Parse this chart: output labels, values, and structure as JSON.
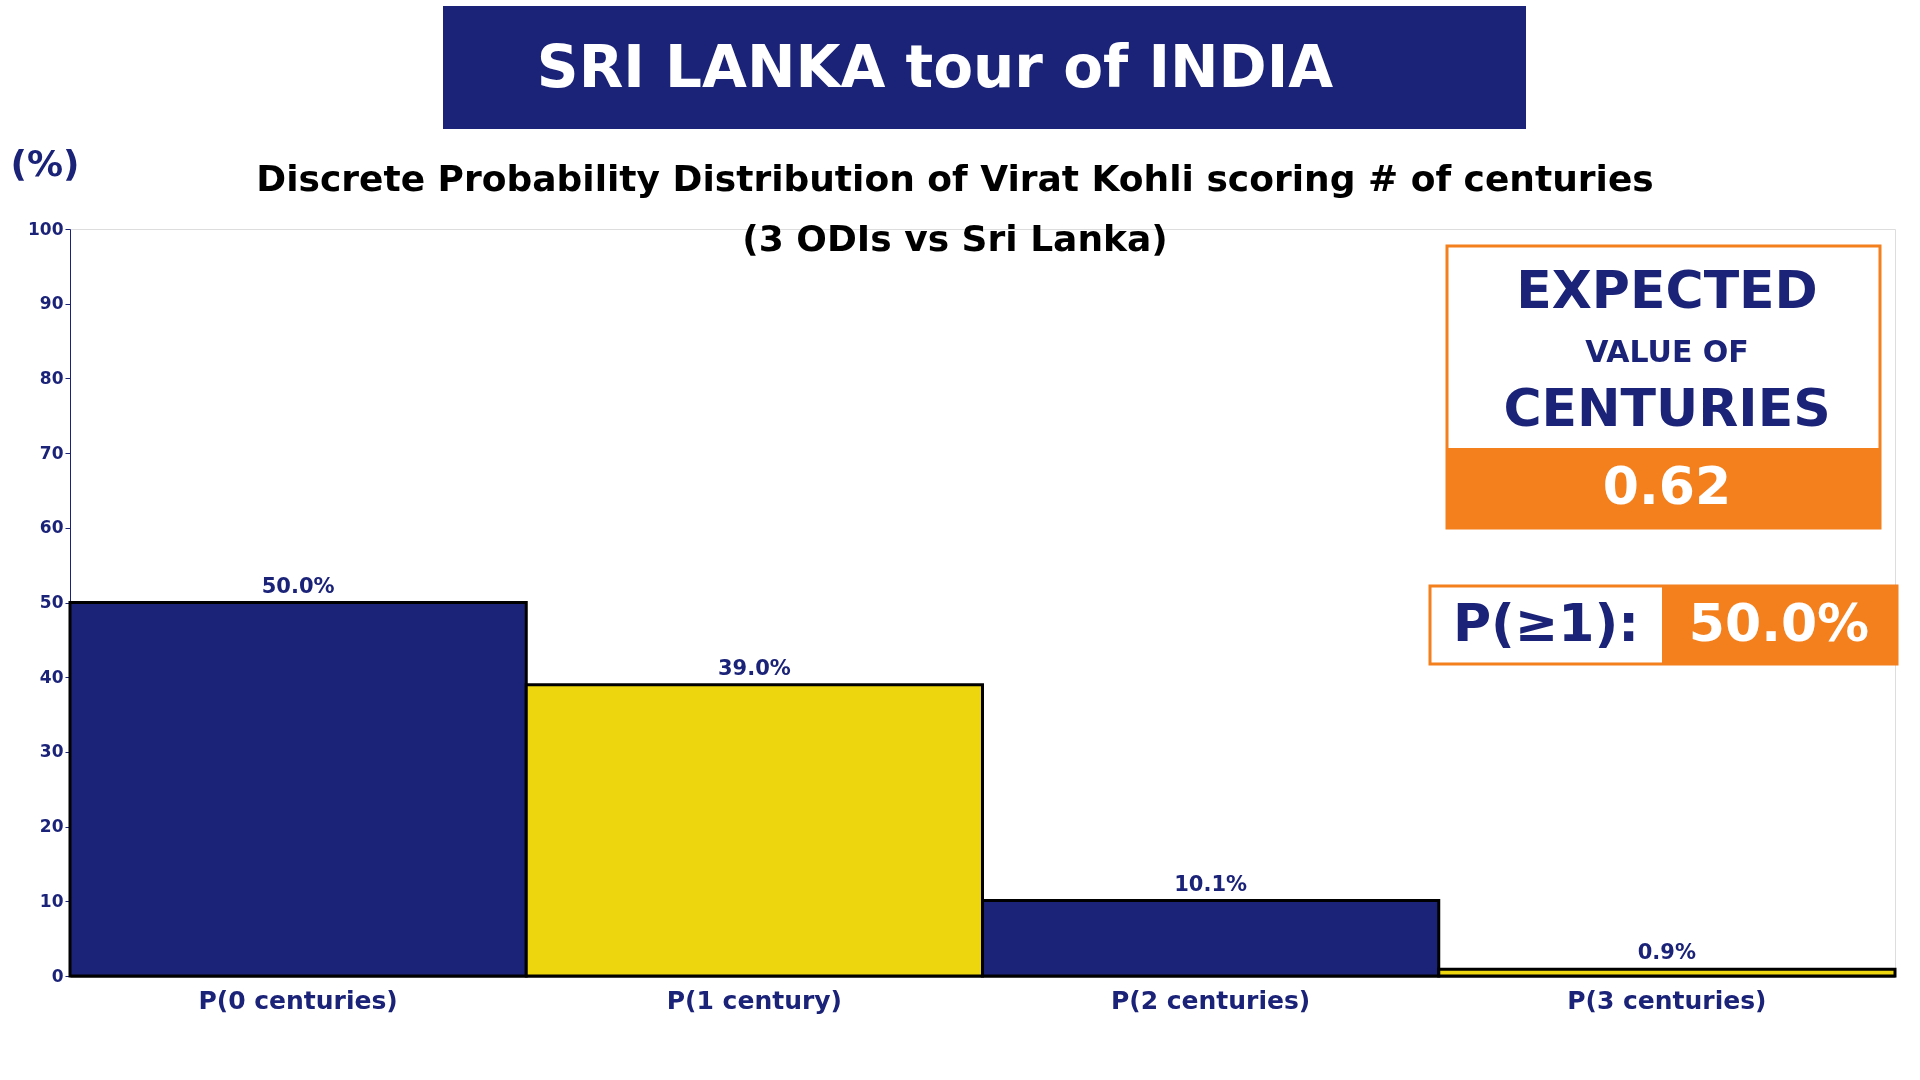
{
  "chart_data": {
    "type": "bar",
    "title": "SRI LANKA tour of INDIA",
    "subtitle": "Discrete Probability Distribution of Virat Kohli scoring # of centuries\n(3 ODIs vs Sri Lanka)",
    "ylabel": "(%)",
    "categories": [
      "P(0 centuries)",
      "P(1 century)",
      "P(2 centuries)",
      "P(3 centuries)"
    ],
    "values": [
      50.0,
      39.0,
      10.1,
      0.9
    ],
    "value_labels": [
      "50.0%",
      "39.0%",
      "10.1%",
      "0.9%"
    ],
    "colors": [
      "#1b2378",
      "#edd60e",
      "#1b2378",
      "#edd60e"
    ],
    "ylim": [
      0,
      100
    ],
    "yticks": [
      0,
      10,
      20,
      30,
      40,
      50,
      60,
      70,
      80,
      90,
      100
    ],
    "grid": false,
    "annotations": [
      "EXPECTED",
      "VALUE OF",
      "CENTURIES",
      "0.62",
      "P(≥1):",
      "50.0%"
    ]
  }
}
